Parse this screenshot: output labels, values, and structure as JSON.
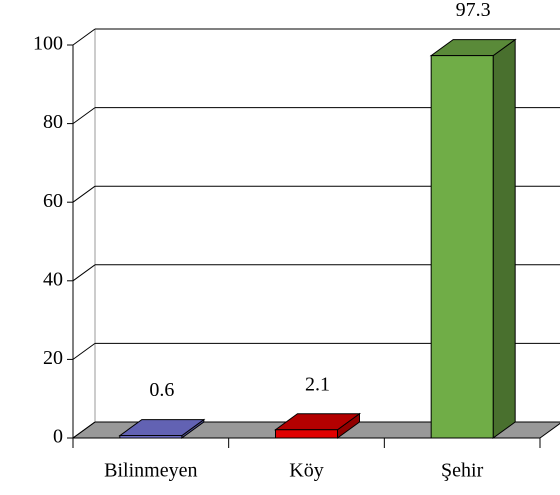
{
  "chart_data": {
    "type": "bar3d",
    "categories": [
      "Bilinmeyen",
      "Köy",
      "Şehir"
    ],
    "values": [
      0.6,
      2.1,
      97.3
    ],
    "colors": [
      "#7b7be0",
      "#e00000",
      "#70ad47"
    ],
    "ylim": [
      0,
      100
    ],
    "yticks": [
      0,
      20,
      40,
      60,
      80,
      100
    ],
    "grid": true
  }
}
